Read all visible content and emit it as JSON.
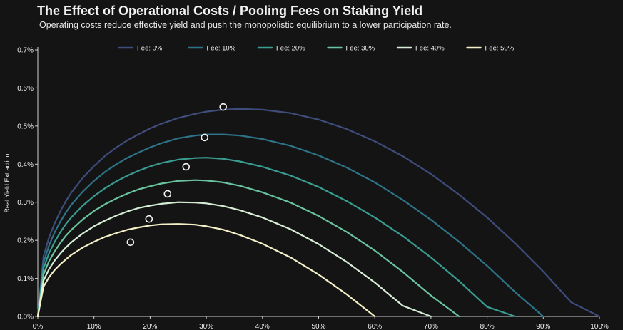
{
  "chart_data": {
    "type": "line",
    "title": "The Effect of Operational Costs / Pooling Fees on Staking Yield",
    "subtitle": "Operating costs reduce effective yield and push the monopolistic equilibrium to a lower participation rate.",
    "xlabel": "",
    "ylabel": "Real Yield Extraction",
    "xlim": [
      0,
      100
    ],
    "ylim": [
      0,
      0.7
    ],
    "x_tick_values": [
      0,
      10,
      20,
      30,
      40,
      50,
      60,
      70,
      80,
      90,
      100
    ],
    "x_ticks": [
      "0%",
      "10%",
      "20%",
      "30%",
      "40%",
      "50%",
      "60%",
      "70%",
      "80%",
      "90%",
      "100%"
    ],
    "y_tick_values": [
      0,
      0.1,
      0.2,
      0.3,
      0.4,
      0.5,
      0.6,
      0.7
    ],
    "y_ticks": [
      "0.0%",
      "0.1%",
      "0.2%",
      "0.3%",
      "0.4%",
      "0.5%",
      "0.6%",
      "0.7%"
    ],
    "grid": false,
    "legend_position": "top",
    "x": [
      0,
      1,
      2,
      3,
      4,
      5,
      6,
      8,
      10,
      12,
      14,
      16,
      18,
      20,
      22,
      25,
      28,
      30,
      33,
      36,
      40,
      45,
      50,
      55,
      60,
      65,
      70,
      75,
      80,
      85,
      90,
      95,
      100
    ],
    "series": [
      {
        "name": "Fee: 0%",
        "color": "#3e4d7c",
        "values": [
          0,
          0.157,
          0.207,
          0.245,
          0.276,
          0.303,
          0.326,
          0.364,
          0.395,
          0.422,
          0.444,
          0.463,
          0.479,
          0.494,
          0.506,
          0.521,
          0.532,
          0.538,
          0.543,
          0.545,
          0.543,
          0.534,
          0.517,
          0.492,
          0.46,
          0.421,
          0.374,
          0.32,
          0.26,
          0.192,
          0.118,
          0.037,
          0
        ]
      },
      {
        "name": "Fee: 10%",
        "color": "#2d7488",
        "values": [
          0,
          0.141,
          0.186,
          0.221,
          0.249,
          0.273,
          0.294,
          0.328,
          0.356,
          0.38,
          0.4,
          0.417,
          0.431,
          0.444,
          0.455,
          0.468,
          0.475,
          0.478,
          0.478,
          0.475,
          0.466,
          0.448,
          0.423,
          0.391,
          0.352,
          0.306,
          0.254,
          0.196,
          0.133,
          0.064,
          0,
          null,
          null
        ]
      },
      {
        "name": "Fee: 20%",
        "color": "#3a9d92",
        "values": [
          0,
          0.126,
          0.166,
          0.196,
          0.221,
          0.243,
          0.261,
          0.291,
          0.316,
          0.337,
          0.355,
          0.37,
          0.383,
          0.394,
          0.403,
          0.412,
          0.416,
          0.417,
          0.414,
          0.407,
          0.393,
          0.37,
          0.34,
          0.303,
          0.26,
          0.211,
          0.155,
          0.093,
          0.025,
          0,
          null,
          null,
          null
        ]
      },
      {
        "name": "Fee: 30%",
        "color": "#6ac4a0",
        "values": [
          0,
          0.11,
          0.145,
          0.171,
          0.193,
          0.212,
          0.228,
          0.255,
          0.277,
          0.295,
          0.31,
          0.323,
          0.334,
          0.342,
          0.349,
          0.356,
          0.358,
          0.357,
          0.352,
          0.343,
          0.326,
          0.299,
          0.264,
          0.222,
          0.173,
          0.117,
          0.055,
          0,
          null,
          null,
          null,
          null,
          null
        ]
      },
      {
        "name": "Fee: 40%",
        "color": "#d7eed6",
        "values": [
          0,
          0.094,
          0.124,
          0.147,
          0.165,
          0.181,
          0.195,
          0.218,
          0.237,
          0.252,
          0.265,
          0.276,
          0.285,
          0.291,
          0.296,
          0.3,
          0.299,
          0.297,
          0.29,
          0.279,
          0.26,
          0.229,
          0.19,
          0.143,
          0.089,
          0.028,
          0,
          null,
          null,
          null,
          null,
          null,
          null
        ]
      },
      {
        "name": "Fee: 50%",
        "color": "#f4f0c8",
        "values": [
          0,
          0.078,
          0.103,
          0.122,
          0.137,
          0.15,
          0.162,
          0.181,
          0.196,
          0.209,
          0.219,
          0.228,
          0.234,
          0.239,
          0.242,
          0.243,
          0.241,
          0.237,
          0.228,
          0.214,
          0.191,
          0.155,
          0.11,
          0.058,
          0,
          null,
          null,
          null,
          null,
          null,
          null,
          null,
          null
        ]
      }
    ],
    "equilibrium_points": [
      {
        "series": "Fee: 0%",
        "x": 33,
        "y": 0.55
      },
      {
        "series": "Fee: 10%",
        "x": 29.7,
        "y": 0.47
      },
      {
        "series": "Fee: 20%",
        "x": 26.4,
        "y": 0.393
      },
      {
        "series": "Fee: 30%",
        "x": 23.1,
        "y": 0.322
      },
      {
        "series": "Fee: 40%",
        "x": 19.8,
        "y": 0.256
      },
      {
        "series": "Fee: 50%",
        "x": 16.5,
        "y": 0.195
      }
    ]
  }
}
